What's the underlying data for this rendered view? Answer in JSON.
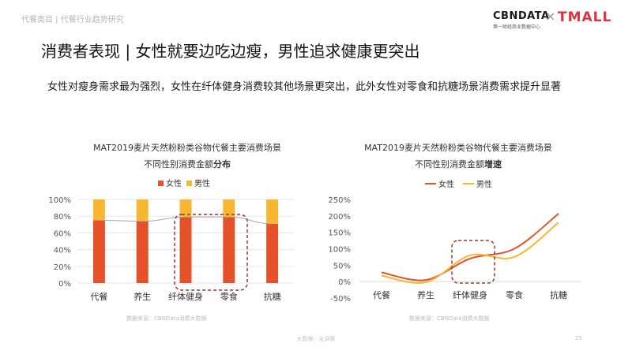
{
  "breadcrumb": "代餐类目 | 代餐行业趋势研究",
  "logos": {
    "cbn": "CBNDATA",
    "cbn_sub": "第一财经商业数据中心",
    "x": "×",
    "tmall": "TMALL"
  },
  "page_title": "消费者表现 | 女性就要边吃边瘦，男性追求健康更突出",
  "subtitle": "女性对瘦身需求最为强烈，女性在纤体健身消费较其他场景更突出，此外女性对零食和抗糖场景消费需求提升显著",
  "colors": {
    "female": "#e5522a",
    "male": "#f7b731",
    "highlight": "#a0352b",
    "trend_line": "#a8a8a8"
  },
  "chart_data": [
    {
      "type": "bar",
      "title": "MAT2019麦片天然粉粉类谷物代餐主要消费场景",
      "subtitle_prefix": "不同性别消费金额",
      "subtitle_bold": "分布",
      "categories": [
        "代餐",
        "养生",
        "纤体健身",
        "零食",
        "抗糖"
      ],
      "series": [
        {
          "name": "女性",
          "values": [
            75,
            74,
            79,
            79,
            71
          ]
        },
        {
          "name": "男性",
          "values": [
            25,
            26,
            21,
            21,
            29
          ]
        }
      ],
      "stacked": true,
      "yticks": [
        "100%",
        "80%",
        "60%",
        "40%",
        "20%",
        "0%"
      ],
      "ylim": [
        0,
        100
      ],
      "legend": "top-center",
      "highlight_categories": [
        "纤体健身",
        "零食"
      ],
      "source": "数据来源：CBNData消费大数据"
    },
    {
      "type": "line",
      "title": "MAT2019麦片天然粉粉类谷物代餐主要消费场景",
      "subtitle_prefix": "不同性别消费金额",
      "subtitle_bold": "增速",
      "categories": [
        "代餐",
        "养生",
        "纤体健身",
        "零食",
        "抗糖"
      ],
      "series": [
        {
          "name": "女性",
          "values": [
            28,
            5,
            70,
            100,
            207
          ]
        },
        {
          "name": "男性",
          "values": [
            18,
            -2,
            80,
            75,
            180
          ]
        }
      ],
      "yticks": [
        "250%",
        "200%",
        "150%",
        "100%",
        "50%",
        "0%",
        "-50%"
      ],
      "ylim": [
        -50,
        250
      ],
      "legend": "top-center",
      "highlight_categories": [
        "纤体健身"
      ],
      "source": "数据来源：CBNData消费大数据"
    }
  ],
  "footer": {
    "center": "大数据 · 全洞察",
    "page": "25"
  }
}
